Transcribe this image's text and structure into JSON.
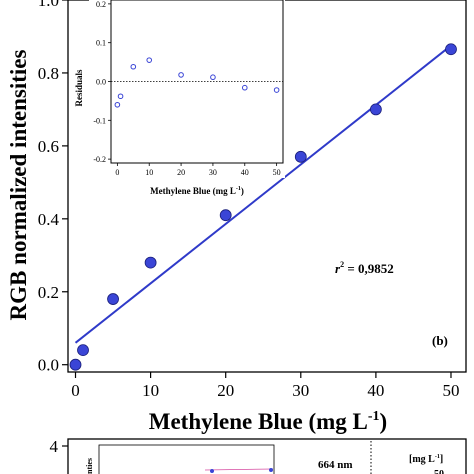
{
  "chart_data": [
    {
      "type": "scatter",
      "title": "",
      "xlabel": "Methylene Blue (mg L",
      "xlabel_sup": "-1",
      "xlabel_close": ")",
      "ylabel": "RGB normalized intensities",
      "xlim": [
        -1,
        52
      ],
      "ylim": [
        -0.02,
        1.0
      ],
      "xticks": [
        0,
        10,
        20,
        30,
        40,
        50
      ],
      "yticks": [
        0.0,
        0.2,
        0.4,
        0.6,
        0.8,
        1.0
      ],
      "ytick_labels": [
        "0.0",
        "0.2",
        "0.4",
        "0.6",
        "0.8",
        "1.0"
      ],
      "grid": false,
      "series": [
        {
          "points": [
            {
              "x": 0,
              "y": 0.0
            },
            {
              "x": 1,
              "y": 0.04
            },
            {
              "x": 5,
              "y": 0.18
            },
            {
              "x": 10,
              "y": 0.28
            },
            {
              "x": 20,
              "y": 0.41
            },
            {
              "x": 30,
              "y": 0.57
            },
            {
              "x": 40,
              "y": 0.7
            },
            {
              "x": 50,
              "y": 0.865
            }
          ],
          "marker_color": "#3a45d6"
        }
      ],
      "fit_line": {
        "x_start": 0,
        "y_start": 0.06,
        "x_end": 50,
        "y_end": 0.875,
        "color": "#2f3ac9"
      },
      "annotations": {
        "r2_label": "r",
        "r2_sup": "2",
        "r2_value": " = 0,9852",
        "panel_label": "(b)"
      }
    },
    {
      "type": "scatter",
      "title": "",
      "xlabel": "Methylene Blue (mg L",
      "xlabel_sup": "-1",
      "xlabel_close": ")",
      "ylabel": "Residuals",
      "xlim": [
        -2,
        52
      ],
      "ylim": [
        -0.21,
        0.21
      ],
      "xticks": [
        0,
        10,
        20,
        30,
        40,
        50
      ],
      "yticks": [
        -0.2,
        -0.1,
        0.0,
        0.1,
        0.2
      ],
      "ytick_labels": [
        "-0.2",
        "-0.1",
        "0.0",
        "0.1",
        "0.2"
      ],
      "reference_line_y": 0.0,
      "series": [
        {
          "points": [
            {
              "x": 0,
              "y": -0.06
            },
            {
              "x": 1,
              "y": -0.038
            },
            {
              "x": 5,
              "y": 0.038
            },
            {
              "x": 10,
              "y": 0.055
            },
            {
              "x": 20,
              "y": 0.017
            },
            {
              "x": 30,
              "y": 0.011
            },
            {
              "x": 40,
              "y": -0.016
            },
            {
              "x": 50,
              "y": -0.022
            }
          ],
          "marker_color": "#3a45d6"
        }
      ]
    }
  ],
  "bottom_panel": {
    "ytick_top": "4",
    "ylabel_fragment": "nties",
    "wavelength_label": "664 nm",
    "legend_title": "[mg L",
    "legend_title_sup": "-1",
    "legend_title_close": "]",
    "legend_first_value": "50"
  }
}
